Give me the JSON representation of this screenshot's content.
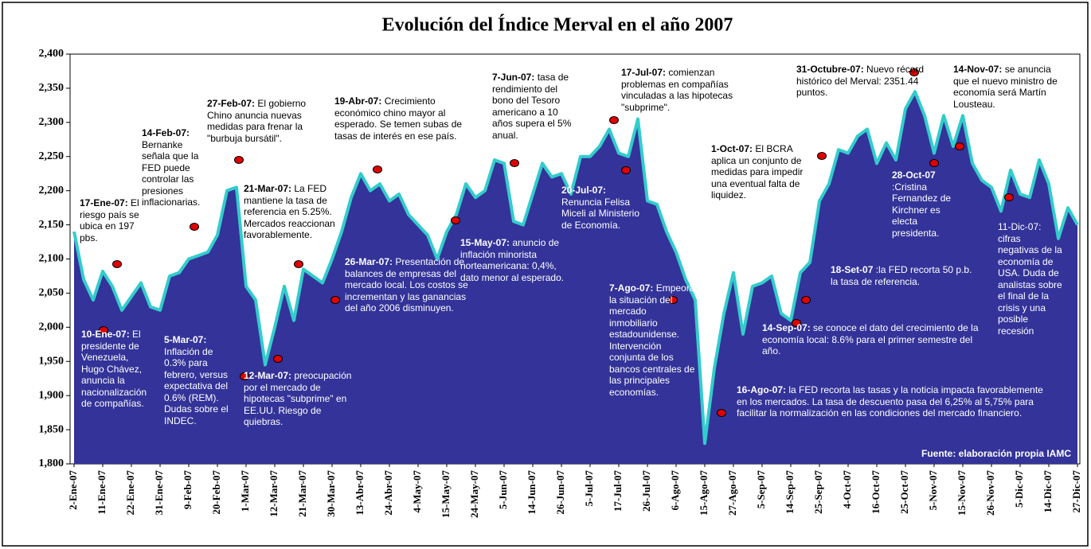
{
  "chart_data": {
    "type": "area",
    "title": "Evolución del Índice Merval en el año 2007",
    "source": "Fuente: elaboración propia IAMC",
    "fill_color": "#333399",
    "line_color": "#33cccc",
    "ylim": [
      1800,
      2400
    ],
    "yticks": [
      {
        "value": 1800,
        "label": "1,800"
      },
      {
        "value": 1850,
        "label": "1,850"
      },
      {
        "value": 1900,
        "label": "1,900"
      },
      {
        "value": 1950,
        "label": "1,950"
      },
      {
        "value": 2000,
        "label": "2,000"
      },
      {
        "value": 2050,
        "label": "2,050"
      },
      {
        "value": 2100,
        "label": "2,100"
      },
      {
        "value": 2150,
        "label": "2,150"
      },
      {
        "value": 2200,
        "label": "2,200"
      },
      {
        "value": 2250,
        "label": "2,250"
      },
      {
        "value": 2300,
        "label": "2,300"
      },
      {
        "value": 2350,
        "label": "2,350"
      },
      {
        "value": 2400,
        "label": "2,400"
      }
    ],
    "categories": [
      "2-Ene-07",
      null,
      null,
      "11-Ene-07",
      null,
      null,
      "22-Ene-07",
      null,
      null,
      "31-Ene-07",
      null,
      null,
      "9-Feb-07",
      null,
      null,
      "20-Feb-07",
      null,
      null,
      "1-Mar-07",
      null,
      null,
      "12-Mar-07",
      null,
      null,
      "21-Mar-07",
      null,
      null,
      "30-Mar-07",
      null,
      null,
      "13-Abr-07",
      null,
      null,
      "24-Abr-07",
      null,
      null,
      "4-May-07",
      null,
      null,
      "15-May-07",
      null,
      null,
      "24-May-07",
      null,
      null,
      "5-Jun-07",
      null,
      null,
      "14-Jun-07",
      null,
      null,
      "26-Jun-07",
      null,
      null,
      "5-Jul-07",
      null,
      null,
      "17-Jul-07",
      null,
      null,
      "26-Jul-07",
      null,
      null,
      "6-Ago-07",
      null,
      null,
      "15-Ago-07",
      null,
      null,
      "27-Ago-07",
      null,
      null,
      "5-Sep-07",
      null,
      null,
      "14-Sep-07",
      null,
      null,
      "25-Sep-07",
      null,
      null,
      "4-Oct-07",
      null,
      null,
      "16-Oct-07",
      null,
      null,
      "25-Oct-07",
      null,
      null,
      "5-Nov-07",
      null,
      null,
      "15-Nov-07",
      null,
      null,
      "26-Nov-07",
      null,
      null,
      "5-Dic-07",
      null,
      null,
      "14-Dic-07",
      null,
      null,
      "27-Dic-07"
    ],
    "values": [
      2140,
      2070,
      2040,
      2082,
      2060,
      2025,
      2045,
      2065,
      2030,
      2025,
      2075,
      2080,
      2100,
      2105,
      2110,
      2135,
      2200,
      2205,
      2060,
      2040,
      1945,
      2000,
      2060,
      2010,
      2085,
      2075,
      2065,
      2100,
      2140,
      2190,
      2225,
      2200,
      2210,
      2185,
      2195,
      2165,
      2150,
      2135,
      2100,
      2140,
      2165,
      2210,
      2190,
      2200,
      2245,
      2240,
      2155,
      2150,
      2195,
      2240,
      2220,
      2225,
      2195,
      2250,
      2250,
      2265,
      2290,
      2255,
      2250,
      2305,
      2185,
      2180,
      2140,
      2110,
      2070,
      2040,
      1830,
      1940,
      2020,
      2080,
      1990,
      2060,
      2065,
      2075,
      2020,
      2010,
      2080,
      2095,
      2185,
      2210,
      2260,
      2255,
      2280,
      2290,
      2240,
      2270,
      2245,
      2320,
      2345,
      2310,
      2255,
      2310,
      2265,
      2310,
      2240,
      2215,
      2205,
      2170,
      2230,
      2195,
      2190,
      2245,
      2210,
      2130,
      2175,
      2150
    ],
    "annotations": [
      {
        "date": "17-Ene-07:",
        "text": "El riesgo país se ubica en 197 pbs."
      },
      {
        "date": "10-Ene-07:",
        "text": "El presidente de Venezuela, Hugo Chávez, anuncia la nacionalización de compañías."
      },
      {
        "date": "14-Feb-07:",
        "text": "Bernanke señala que la FED puede controlar las presiones inflacionarias."
      },
      {
        "date": "5-Mar-07:",
        "text": "Inflación de 0.3% para febrero, versus expectativa del 0.6% (REM). Dudas sobre el INDEC."
      },
      {
        "date": "27-Feb-07:",
        "text": "El gobierno Chino anuncia nuevas medidas para frenar la \"burbuja bursátil\"."
      },
      {
        "date": "21-Mar-07:",
        "text": "La FED mantiene la tasa de referencia en 5.25%. Mercados reaccionan favorablemente."
      },
      {
        "date": "12-Mar-07:",
        "text": "preocupación por el mercado de hipotecas \"subprime\" en EE.UU.  Riesgo de quiebras."
      },
      {
        "date": "19-Abr-07:",
        "text": "Crecimiento económico chino mayor al esperado. Se temen subas de tasas de interés en ese país."
      },
      {
        "date": "26-Mar-07:",
        "text": "Presentación de balances de empresas del mercado local. Los costos se incrementan y las ganancias del año 2006 disminuyen."
      },
      {
        "date": "7-Jun-07:",
        "text": "tasa de rendimiento del bono del Tesoro americano a 10 años supera el 5% anual."
      },
      {
        "date": "15-May-07:",
        "text": "anuncio de inflación minorista norteamericana:  0,4%, dato menor al esperado."
      },
      {
        "date": "17-Jul-07:",
        "text": "comienzan problemas en compañías vinculadas a las hipotecas \"subprime\"."
      },
      {
        "date": "20-Jul-07:",
        "text": "Renuncia Felisa Miceli al Ministerio de Economía."
      },
      {
        "date": "7-Ago-07:",
        "text": "Empeora la situación del mercado inmobiliario estadounidense. Intervención conjunta de los bancos centrales de las principales economías."
      },
      {
        "date": "16-Ago-07:",
        "text": "la FED recorta las tasas y la noticia impacta favorablemente en los mercados. La tasa de descuento pasa del 6,25% al 5,75% para facilitar la normalización en las condiciones del mercado financiero."
      },
      {
        "date": "31-Octubre-07:",
        "text": "Nuevo récord histórico del Merval: 2351.44 puntos."
      },
      {
        "date": "1-Oct-07:",
        "text": "El BCRA aplica un conjunto de medidas para impedir una eventual falta de liquidez."
      },
      {
        "date": "14-Nov-07:",
        "text": "se anuncia que el nuevo ministro de economía será Martín Lousteau."
      },
      {
        "date": "28-Oct-07",
        "text": ":Cristina Fernandez de Kirchner es electa presidenta."
      },
      {
        "date": "18-Set-07",
        "text": ":la FED recorta 50 p.b. la tasa de referencia."
      },
      {
        "date": "14-Sep-07:",
        "text": "se conoce el dato del crecimiento de la economía local: 8.6% para el primer semestre del año."
      },
      {
        "date": "11-Dic-07:",
        "text": "cifras negativas de la economía de USA. Duda de analistas sobre el final de la crisis y una posible recesión"
      }
    ]
  }
}
